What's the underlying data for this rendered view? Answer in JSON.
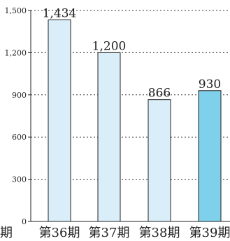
{
  "chart_data": {
    "type": "bar",
    "categories": [
      "第36期",
      "第37期",
      "第38期",
      "第39期"
    ],
    "values": [
      1434,
      1200,
      866,
      930
    ],
    "value_labels": [
      "1,434",
      "1,200",
      "866",
      "930"
    ],
    "yticks": [
      0,
      300,
      600,
      900,
      1200,
      1500
    ],
    "ytick_labels": [
      "0",
      "300",
      "600",
      "900",
      "1,200",
      "1,500"
    ],
    "ylim": [
      0,
      1500
    ],
    "grid": true,
    "bar_color": "#d9eef8",
    "highlight_color": "#7fd0ea",
    "highlight_index": 3,
    "border_color": "#222222",
    "grid_color": "#333333",
    "title": "",
    "xlabel": "",
    "ylabel": ""
  },
  "page": {
    "clipped_right_label": "期"
  }
}
